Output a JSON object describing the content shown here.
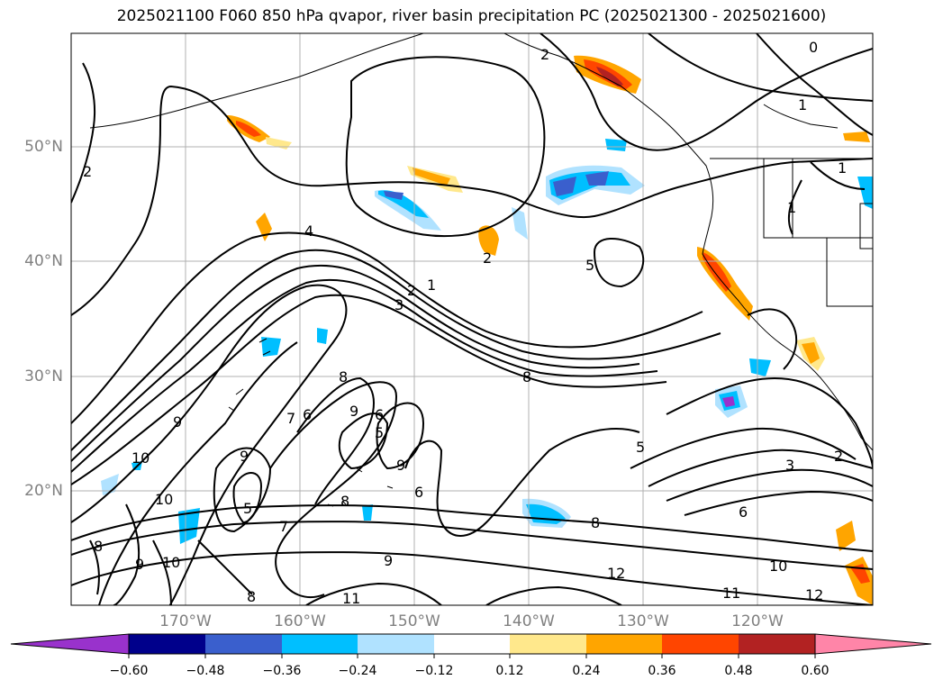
{
  "title": "2025021100 F060 850 hPa qvapor, river basin precipitation PC (2025021300 - 2025021600)",
  "lat_ticks": [
    "50°N",
    "40°N",
    "30°N",
    "20°N"
  ],
  "lon_ticks": [
    "170°W",
    "160°W",
    "150°W",
    "140°W",
    "130°W",
    "120°W"
  ],
  "colorbar": {
    "levels": [
      "−0.60",
      "−0.48",
      "−0.36",
      "−0.24",
      "−0.12",
      "0.12",
      "0.24",
      "0.36",
      "0.48",
      "0.60"
    ],
    "colors": [
      "#9932cc",
      "#00008b",
      "#3a5fcd",
      "#00bfff",
      "#b0e2ff",
      "#ffffff",
      "#ffe88c",
      "#ffa500",
      "#ff4500",
      "#b22222",
      "#ff85a8"
    ]
  },
  "contour_labels": [
    "0",
    "1",
    "2",
    "2",
    "1",
    "2",
    "4",
    "2",
    "1",
    "3",
    "5",
    "5",
    "8",
    "8",
    "9",
    "9",
    "7",
    "6",
    "9",
    "10",
    "10",
    "9",
    "6",
    "5",
    "9",
    "6",
    "8",
    "8",
    "8",
    "9",
    "7",
    "8",
    "10",
    "12",
    "11",
    "11",
    "10",
    "12",
    "6",
    "3",
    "2",
    "5",
    "1"
  ],
  "extent": {
    "lon": [
      -180,
      -110
    ],
    "lat": [
      10,
      60
    ]
  }
}
